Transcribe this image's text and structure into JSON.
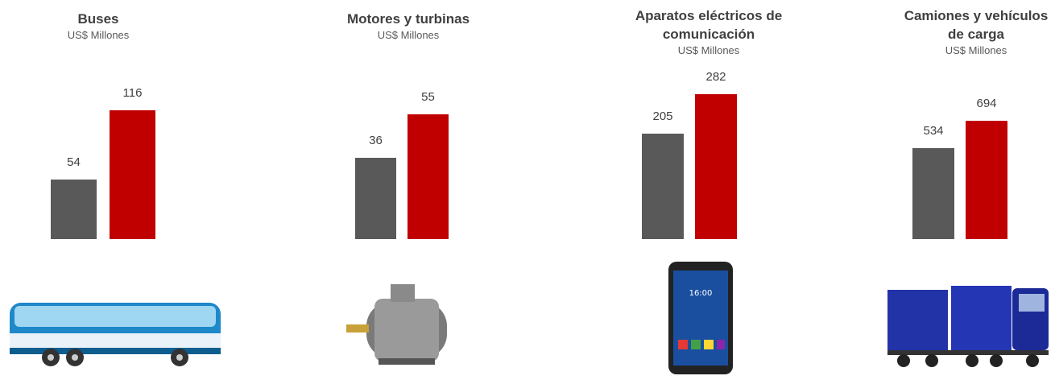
{
  "chart_data": [
    {
      "type": "bar",
      "title": "Buses",
      "subtitle": "US$ Millones",
      "categories": [
        null,
        null
      ],
      "values": [
        54,
        116
      ],
      "colors": [
        "#595959",
        "#c00000"
      ]
    },
    {
      "type": "bar",
      "title": "Motores y turbinas",
      "subtitle": "US$ Millones",
      "categories": [
        null,
        null
      ],
      "values": [
        36,
        55
      ],
      "colors": [
        "#595959",
        "#c00000"
      ]
    },
    {
      "type": "bar",
      "title": "Aparatos eléctricos de comunicación",
      "subtitle": "US$ Millones",
      "categories": [
        null,
        null
      ],
      "values": [
        205,
        282
      ],
      "colors": [
        "#595959",
        "#c00000"
      ]
    },
    {
      "type": "bar",
      "title": "Camiones y vehículos de carga",
      "subtitle": "US$ Millones",
      "categories": [
        null,
        null
      ],
      "values": [
        534,
        694
      ],
      "colors": [
        "#595959",
        "#c00000"
      ]
    }
  ]
}
